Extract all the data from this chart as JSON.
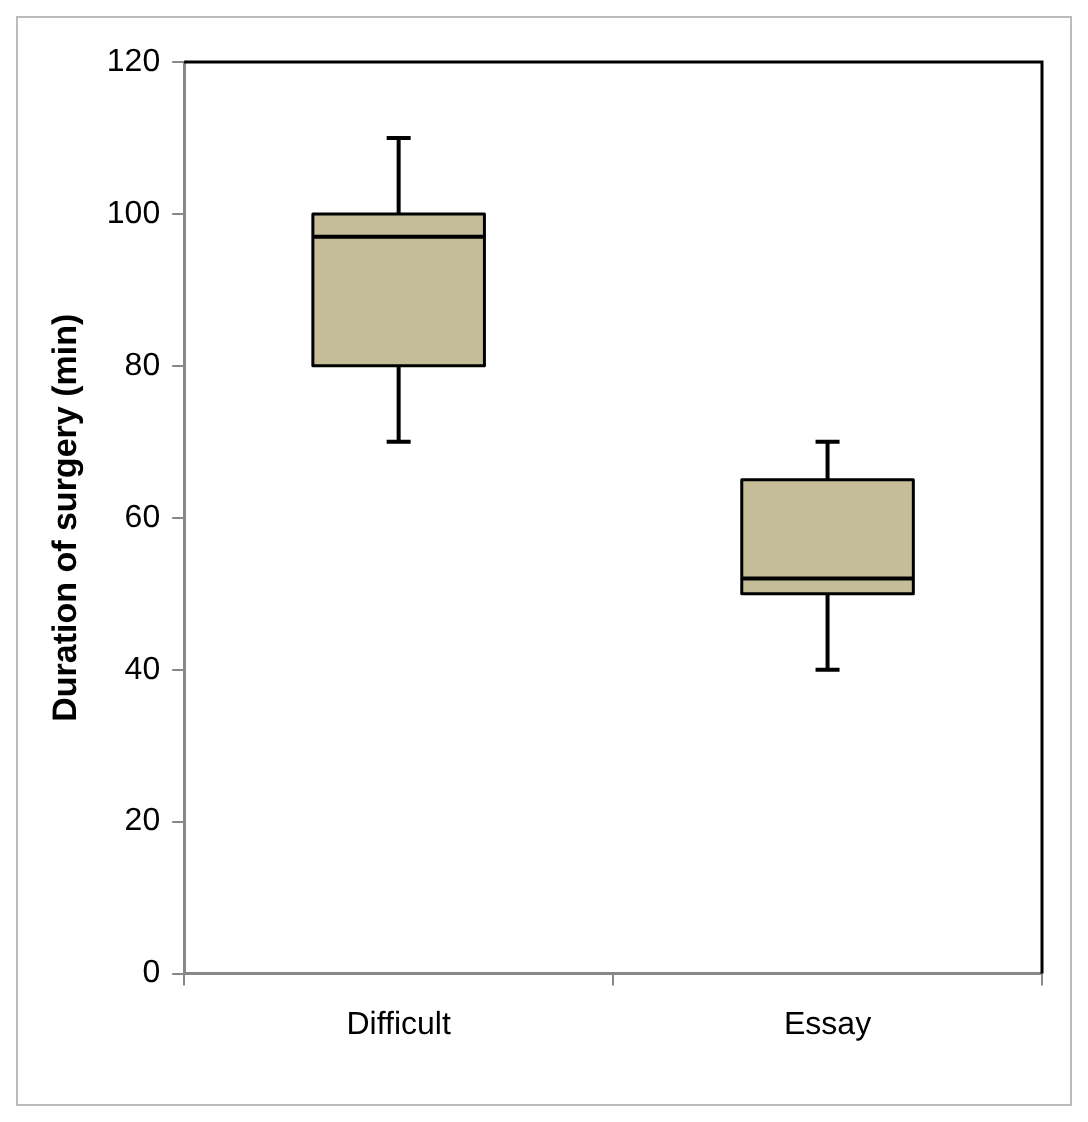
{
  "chart_data": {
    "type": "box",
    "ylabel": "Duration of surgery (min)",
    "categories": [
      "Difficult",
      "Essay"
    ],
    "color": "#c4bd97",
    "boxes": [
      {
        "low": 70,
        "q1": 80,
        "median": 97,
        "q3": 100,
        "high": 110
      },
      {
        "low": 40,
        "q1": 50,
        "median": 52,
        "q3": 65,
        "high": 70
      }
    ],
    "ylim": [
      0,
      120
    ],
    "yticks": [
      0,
      20,
      40,
      60,
      80,
      100,
      120
    ]
  }
}
